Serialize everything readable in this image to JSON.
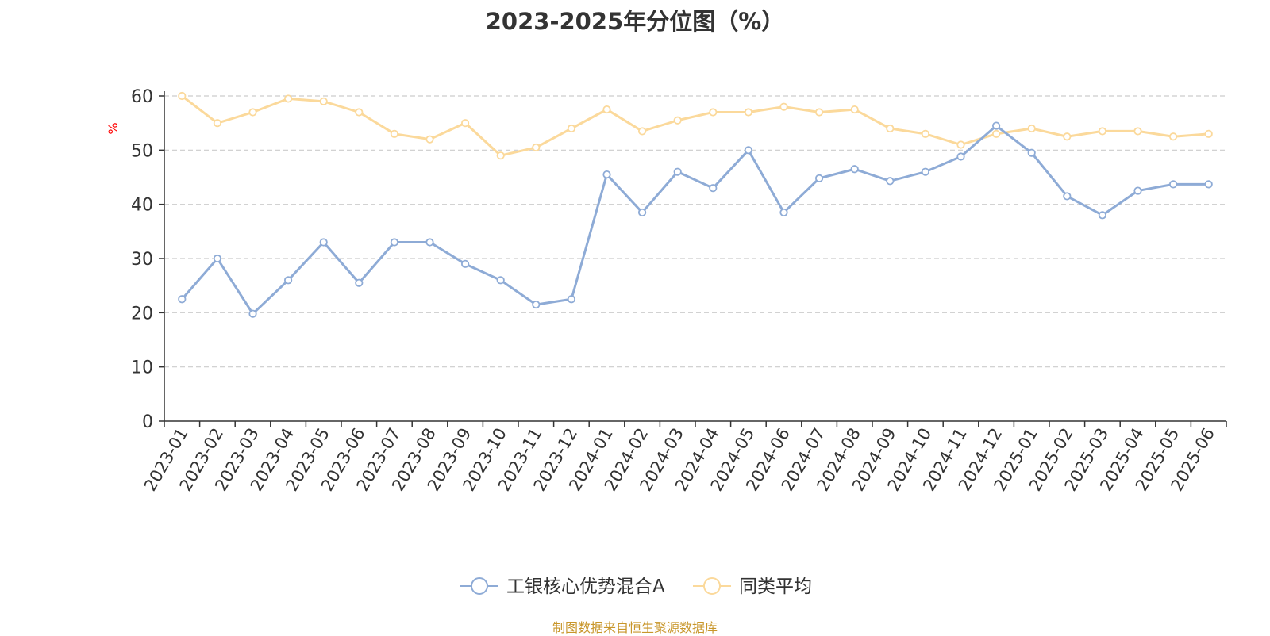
{
  "chart_data": {
    "type": "line",
    "title": "2023-2025年分位图（%）",
    "ylabel": "%",
    "ylim": [
      0,
      60
    ],
    "yticks": [
      0,
      10,
      20,
      30,
      40,
      50,
      60
    ],
    "grid": true,
    "legend_position": "bottom",
    "categories": [
      "2023-01",
      "2023-02",
      "2023-03",
      "2023-04",
      "2023-05",
      "2023-06",
      "2023-07",
      "2023-08",
      "2023-09",
      "2023-10",
      "2023-11",
      "2023-12",
      "2024-01",
      "2024-02",
      "2024-03",
      "2024-04",
      "2024-05",
      "2024-06",
      "2024-07",
      "2024-08",
      "2024-09",
      "2024-10",
      "2024-11",
      "2024-12",
      "2025-01",
      "2025-02",
      "2025-03",
      "2025-04",
      "2025-05",
      "2025-06"
    ],
    "series": [
      {
        "name": "工银核心优势混合A",
        "color": "#8eabd6",
        "values": [
          22.5,
          30.0,
          19.8,
          26.0,
          33.0,
          25.5,
          33.0,
          33.0,
          29.0,
          26.0,
          21.5,
          22.5,
          45.5,
          38.5,
          46.0,
          43.0,
          50.0,
          38.5,
          44.8,
          46.5,
          44.3,
          46.0,
          48.8,
          54.5,
          49.5,
          41.5,
          38.0,
          42.5,
          43.7,
          43.7
        ]
      },
      {
        "name": "同类平均",
        "color": "#fbd99b",
        "values": [
          60.0,
          55.0,
          57.0,
          59.5,
          59.0,
          57.0,
          53.0,
          52.0,
          55.0,
          49.0,
          50.5,
          54.0,
          57.5,
          53.5,
          55.5,
          57.0,
          57.0,
          58.0,
          57.0,
          57.5,
          54.0,
          53.0,
          51.0,
          53.0,
          54.0,
          52.5,
          53.5,
          53.5,
          52.5,
          53.0
        ]
      }
    ]
  },
  "ylabel_color": "#ff0000",
  "source_text": "制图数据来自恒生聚源数据库",
  "source_color": "#c8962a"
}
